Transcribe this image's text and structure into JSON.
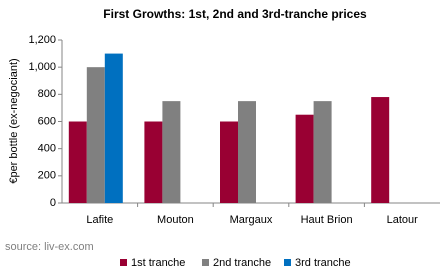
{
  "chart_data": {
    "type": "bar",
    "title": "First Growths:  1st, 2nd and 3rd-tranche  prices",
    "y_label": "€per bottle (ex-negociant)",
    "source": "source: liv-ex.com",
    "categories": [
      "Lafite",
      "Mouton",
      "Margaux",
      "Haut Brion",
      "Latour"
    ],
    "series": [
      {
        "name": "1st tranche",
        "color": "#990033",
        "values": [
          600,
          600,
          600,
          650,
          780
        ]
      },
      {
        "name": "2nd tranche",
        "color": "#808080",
        "values": [
          1000,
          750,
          750,
          750,
          null
        ]
      },
      {
        "name": "3rd tranche",
        "color": "#0070c0",
        "values": [
          1100,
          null,
          null,
          null,
          null
        ]
      }
    ],
    "ylim": [
      0,
      1200
    ],
    "yticks": [
      0,
      200,
      400,
      600,
      800,
      {
        "value": 1000,
        "label": "1,000"
      },
      {
        "value": 1200,
        "label": "1,200"
      }
    ],
    "grid": false,
    "legend": "bottom"
  }
}
